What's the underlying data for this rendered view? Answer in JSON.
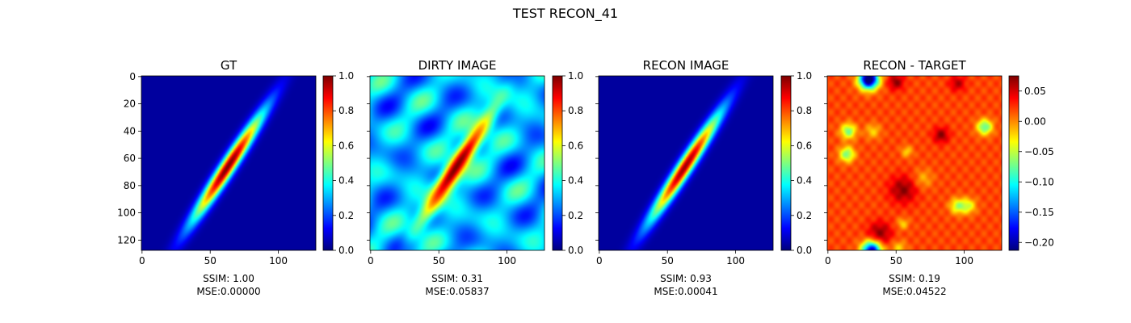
{
  "suptitle": "TEST RECON_41",
  "chart_data": [
    {
      "type": "heatmap",
      "title": "GT",
      "metrics": [
        "SSIM: 1.00",
        "MSE:0.00000"
      ],
      "image_size": [
        128,
        128
      ],
      "xticks": [
        0,
        50,
        100
      ],
      "yticks": [
        0,
        20,
        40,
        60,
        80,
        100,
        120
      ],
      "show_ytick_labels": true,
      "colormap": "jet",
      "clim": [
        0,
        1
      ],
      "colorbar_ticks": [
        "0.0",
        "0.2",
        "0.4",
        "0.6",
        "0.8",
        "1.0"
      ],
      "colorbar_values": [
        0,
        0.2,
        0.4,
        0.6,
        0.8,
        1.0
      ],
      "content": "ellipse",
      "background": 0.03,
      "ellipse": {
        "center": [
          63,
          66
        ],
        "length": 135,
        "width": 14,
        "angle_deg": 57,
        "peak": 1.0
      }
    },
    {
      "type": "heatmap",
      "title": "DIRTY IMAGE",
      "metrics": [
        "SSIM: 0.31",
        "MSE:0.05837"
      ],
      "image_size": [
        128,
        128
      ],
      "xticks": [
        0,
        50,
        100
      ],
      "yticks": [
        0,
        20,
        40,
        60,
        80,
        100,
        120
      ],
      "show_ytick_labels": false,
      "colormap": "jet",
      "clim": [
        0,
        1
      ],
      "colorbar_ticks": [
        "0.0",
        "0.2",
        "0.4",
        "0.6",
        "0.8",
        "1.0"
      ],
      "colorbar_values": [
        0,
        0.2,
        0.4,
        0.6,
        0.8,
        1.0
      ],
      "content": "dirty",
      "background": 0.3,
      "ellipse": {
        "center": [
          63,
          66
        ],
        "length": 135,
        "width": 16,
        "angle_deg": 57,
        "peak": 1.0
      }
    },
    {
      "type": "heatmap",
      "title": "RECON IMAGE",
      "metrics": [
        "SSIM: 0.93",
        "MSE:0.00041"
      ],
      "image_size": [
        128,
        128
      ],
      "xticks": [
        0,
        50,
        100
      ],
      "yticks": [
        0,
        20,
        40,
        60,
        80,
        100,
        120
      ],
      "show_ytick_labels": false,
      "colormap": "jet",
      "clim": [
        0,
        1
      ],
      "colorbar_ticks": [
        "0.0",
        "0.2",
        "0.4",
        "0.6",
        "0.8",
        "1.0"
      ],
      "colorbar_values": [
        0,
        0.2,
        0.4,
        0.6,
        0.8,
        1.0
      ],
      "content": "ellipse",
      "background": 0.03,
      "ellipse": {
        "center": [
          63,
          66
        ],
        "length": 135,
        "width": 14,
        "angle_deg": 57,
        "peak": 0.97
      }
    },
    {
      "type": "heatmap",
      "title": "RECON - TARGET",
      "metrics": [
        "SSIM: 0.19",
        "MSE:0.04522"
      ],
      "image_size": [
        128,
        128
      ],
      "xticks": [
        0,
        50,
        100
      ],
      "yticks": [
        0,
        20,
        40,
        60,
        80,
        100,
        120
      ],
      "show_ytick_labels": false,
      "colormap": "jet",
      "clim": [
        -0.213,
        0.075
      ],
      "colorbar_ticks": [
        "0.05",
        "0.00",
        "−0.05",
        "−0.10",
        "−0.15",
        "−0.20"
      ],
      "colorbar_values": [
        0.05,
        0.0,
        -0.05,
        -0.1,
        -0.15,
        -0.2
      ],
      "content": "residual",
      "background": 0.02,
      "blobs": [
        {
          "x": 30,
          "y": 2,
          "s": 5,
          "a": -0.26
        },
        {
          "x": 50,
          "y": 4,
          "s": 4,
          "a": 0.05
        },
        {
          "x": 95,
          "y": 5,
          "s": 4,
          "a": 0.04
        },
        {
          "x": 15,
          "y": 40,
          "s": 4,
          "a": -0.09
        },
        {
          "x": 33,
          "y": 40,
          "s": 4,
          "a": -0.04
        },
        {
          "x": 14,
          "y": 57,
          "s": 4,
          "a": -0.09
        },
        {
          "x": 115,
          "y": 37,
          "s": 4,
          "a": -0.1
        },
        {
          "x": 83,
          "y": 43,
          "s": 4,
          "a": 0.05
        },
        {
          "x": 58,
          "y": 55,
          "s": 3,
          "a": -0.04
        },
        {
          "x": 55,
          "y": 83,
          "s": 7,
          "a": 0.05
        },
        {
          "x": 38,
          "y": 115,
          "s": 6,
          "a": 0.05
        },
        {
          "x": 95,
          "y": 95,
          "s": 4,
          "a": -0.07
        },
        {
          "x": 103,
          "y": 95,
          "s": 4,
          "a": -0.06
        },
        {
          "x": 55,
          "y": 108,
          "s": 3,
          "a": -0.04
        },
        {
          "x": 32,
          "y": 128,
          "s": 5,
          "a": -0.22
        },
        {
          "x": 52,
          "y": 126,
          "s": 4,
          "a": -0.04
        },
        {
          "x": 70,
          "y": 75,
          "s": 5,
          "a": -0.03
        }
      ]
    }
  ]
}
